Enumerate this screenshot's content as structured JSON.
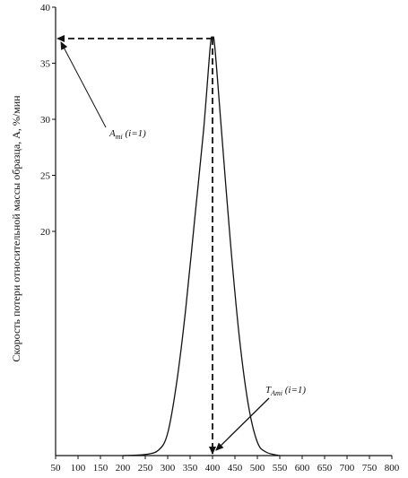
{
  "chart_data": {
    "type": "line",
    "ylabel": "Скорость потери относительной массы образца, A, %/мин",
    "xlim": [
      50,
      800
    ],
    "ylim": [
      0,
      40
    ],
    "x_ticks": [
      "50",
      "100",
      "150",
      "200",
      "250",
      "300",
      "350",
      "400",
      "450",
      "500",
      "550",
      "600",
      "650",
      "700",
      "750",
      "800"
    ],
    "y_ticks": [
      "40",
      "35",
      "30",
      "25",
      "20"
    ],
    "series": [
      {
        "x": [
          200,
          250,
          280,
          300,
          320,
          340,
          360,
          380,
          395,
          400,
          405,
          420,
          440,
          460,
          480,
          500,
          520,
          550
        ],
        "y": [
          0,
          0.1,
          0.5,
          2,
          6.5,
          13,
          21,
          29,
          36.5,
          37.2,
          36.5,
          29,
          19,
          10.5,
          4.5,
          1.2,
          0.3,
          0
        ]
      }
    ],
    "peak": {
      "x": 400,
      "y": 37.2
    },
    "annotations": [
      {
        "name": "A",
        "sub": "mi",
        "suffix": " (i=1)"
      },
      {
        "name": "T",
        "sub": "Ami",
        "suffix": " (i=1)"
      }
    ]
  }
}
